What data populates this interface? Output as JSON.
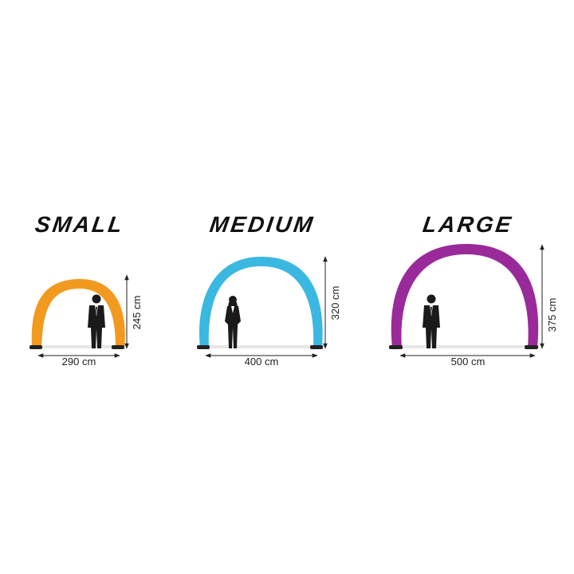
{
  "arches": [
    {
      "title": "SMALL",
      "color": "#F29A1F",
      "width_label": "290 cm",
      "height_label": "245 cm",
      "figure": "man-in-suit"
    },
    {
      "title": "MEDIUM",
      "color": "#3BB8E1",
      "width_label": "400 cm",
      "height_label": "320 cm",
      "figure": "woman-in-suit"
    },
    {
      "title": "LARGE",
      "color": "#9A2A9A",
      "width_label": "500 cm",
      "height_label": "375 cm",
      "figure": "man-in-suit"
    }
  ]
}
